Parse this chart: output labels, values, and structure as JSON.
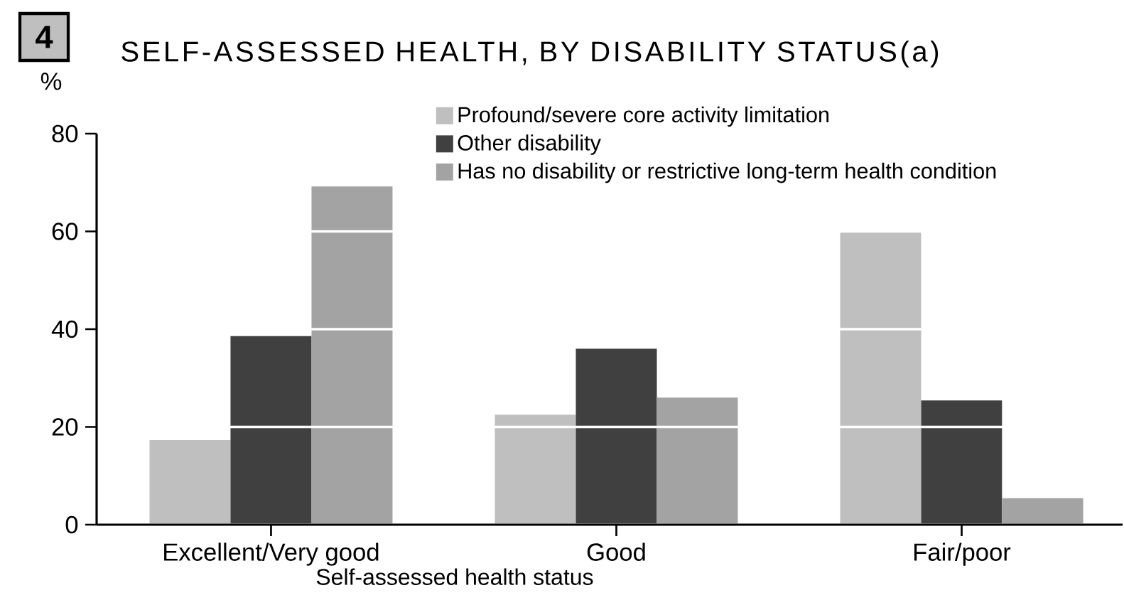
{
  "chart_data": {
    "type": "bar",
    "title": "SELF-ASSESSED HEALTH, BY DISABILITY STATUS(a)",
    "annotations": [
      "4"
    ],
    "xlabel": "Self-assessed health status",
    "ylabel": "%",
    "categories": [
      "Excellent/Very good",
      "Good",
      "Fair/poor"
    ],
    "series": [
      {
        "name": "Profound/severe core activity limitation",
        "color": "#bfbfbf",
        "values": [
          17.3,
          22.5,
          60.0
        ]
      },
      {
        "name": "Other disability",
        "color": "#404040",
        "values": [
          38.6,
          36.0,
          25.4
        ]
      },
      {
        "name": "Has no disability or restrictive long-term health condition",
        "color": "#a3a3a3",
        "values": [
          69.2,
          26.0,
          5.4
        ]
      }
    ],
    "ylim": [
      0,
      80
    ],
    "yticks": [
      0,
      20,
      40,
      60,
      80
    ],
    "grid": "y",
    "legend": "top"
  }
}
